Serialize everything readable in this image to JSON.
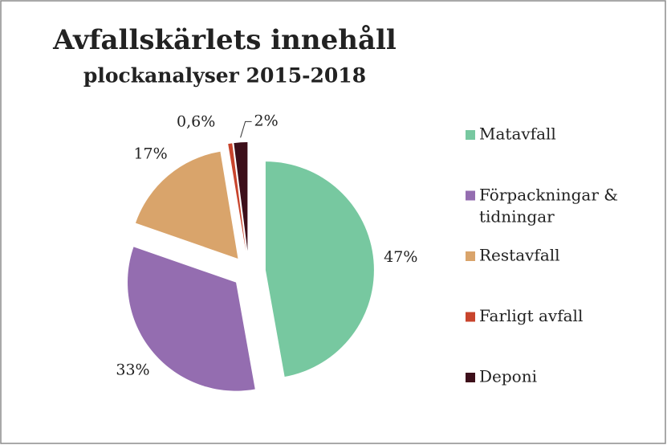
{
  "chart_data": {
    "type": "pie",
    "title": "Avfallskärlets innehåll",
    "subtitle": "plockanalyser 2015-2018",
    "categories": [
      "Matavfall",
      "Förpackningar & tidningar",
      "Restavfall",
      "Farligt avfall",
      "Deponi"
    ],
    "values": [
      47,
      33,
      17,
      0.6,
      2
    ],
    "value_labels": [
      "47%",
      "33%",
      "17%",
      "0,6%",
      "2%"
    ],
    "colors": [
      "#77c8a0",
      "#946db0",
      "#d9a46b",
      "#c8442c",
      "#3d0f1a"
    ],
    "legend": "right"
  }
}
